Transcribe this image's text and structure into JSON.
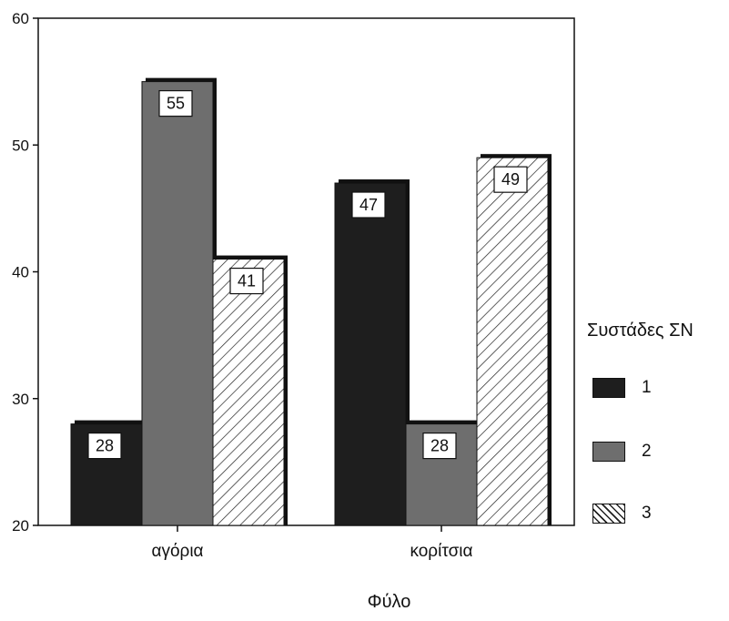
{
  "chart_data": {
    "type": "bar",
    "title": "",
    "xlabel": "Φύλο",
    "ylabel": "",
    "categories": [
      "αγόρια",
      "κορίτσια"
    ],
    "ylim": [
      20,
      60
    ],
    "yticks": [
      20,
      30,
      40,
      50,
      60
    ],
    "grid": false,
    "legend_title": "Συστάδες ΣΝ",
    "legend_position": "right",
    "series": [
      {
        "name": "1",
        "values": [
          28,
          47
        ],
        "color": "#1e1e1e",
        "pattern": "solid"
      },
      {
        "name": "2",
        "values": [
          55,
          28
        ],
        "color": "#6e6e6e",
        "pattern": "solid"
      },
      {
        "name": "3",
        "values": [
          41,
          49
        ],
        "color": "#ffffff",
        "pattern": "diagonal-hatch"
      }
    ],
    "data_labels": true
  }
}
